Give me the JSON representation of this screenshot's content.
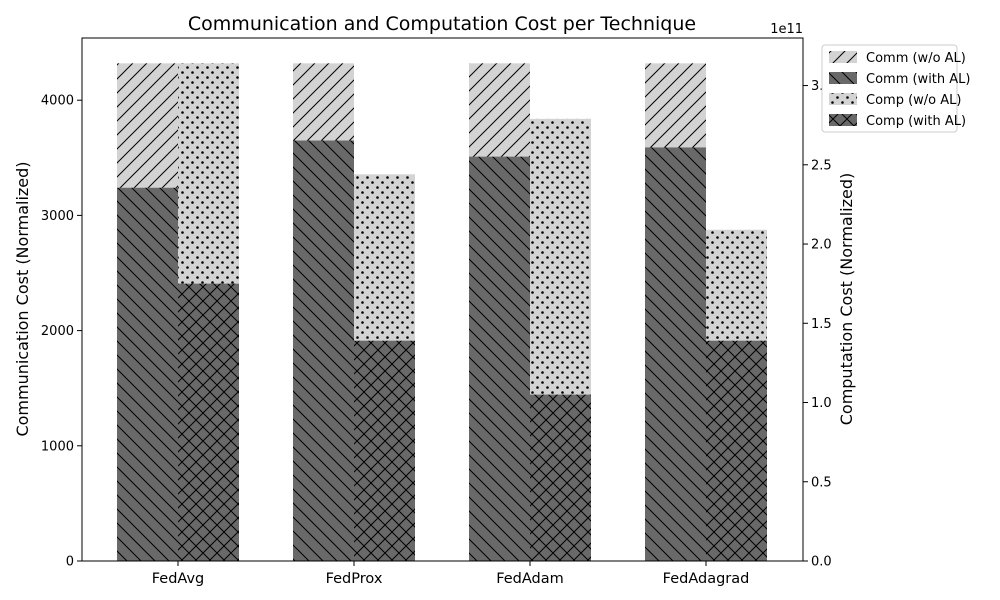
{
  "chart_data": {
    "type": "bar",
    "title": "Communication and Computation Cost per Technique",
    "categories": [
      "FedAvg",
      "FedProx",
      "FedAdam",
      "FedAdagrad"
    ],
    "left_axis": {
      "label": "Communication Cost (Normalized)",
      "ylim": [
        0,
        4540
      ],
      "ticks": [
        0,
        1000,
        2000,
        3000,
        4000
      ],
      "tick_labels": [
        "0",
        "1000",
        "2000",
        "3000",
        "4000"
      ]
    },
    "right_axis": {
      "label": "Computation Cost (Normalized)",
      "offset_text": "1e11",
      "ylim": [
        0,
        3.3
      ],
      "ticks": [
        0.0,
        0.5,
        1.0,
        1.5,
        2.0,
        2.5,
        3.0
      ],
      "tick_labels": [
        "0.0",
        "0.5",
        "1.0",
        "1.5",
        "2.0",
        "2.5",
        "3.0"
      ]
    },
    "series": [
      {
        "name": "Comm (w/o AL)",
        "axis": "left",
        "position": "left",
        "values": [
          4320,
          4320,
          4320,
          4320
        ],
        "color": "#d3d3d3",
        "hatch": "forward-diagonal"
      },
      {
        "name": "Comm (with AL)",
        "axis": "left",
        "position": "left",
        "values": [
          3240,
          3650,
          3510,
          3590
        ],
        "color": "#696969",
        "hatch": "back-diagonal"
      },
      {
        "name": "Comp (w/o AL)",
        "axis": "right",
        "position": "right",
        "values": [
          3.14,
          2.44,
          2.79,
          2.09
        ],
        "color": "#d3d3d3",
        "hatch": "dots"
      },
      {
        "name": "Comp (with AL)",
        "axis": "right",
        "position": "right",
        "values": [
          1.75,
          1.39,
          1.05,
          1.39
        ],
        "color": "#696969",
        "hatch": "crosshatch"
      }
    ],
    "legend_position": "outside-top-right",
    "grid": false
  }
}
